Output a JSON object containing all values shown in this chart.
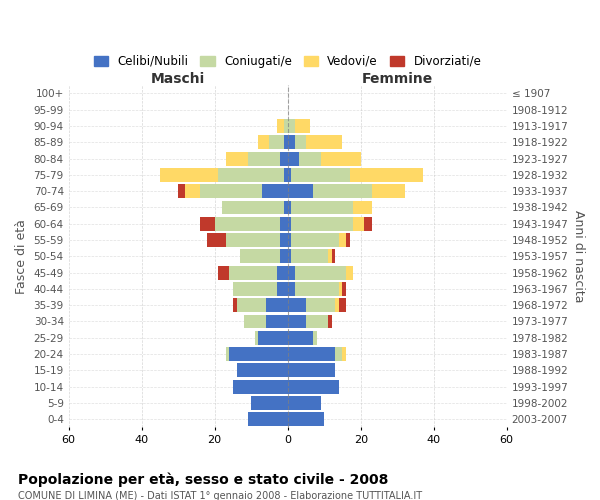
{
  "age_groups": [
    "0-4",
    "5-9",
    "10-14",
    "15-19",
    "20-24",
    "25-29",
    "30-34",
    "35-39",
    "40-44",
    "45-49",
    "50-54",
    "55-59",
    "60-64",
    "65-69",
    "70-74",
    "75-79",
    "80-84",
    "85-89",
    "90-94",
    "95-99",
    "100+"
  ],
  "birth_years": [
    "2003-2007",
    "1998-2002",
    "1993-1997",
    "1988-1992",
    "1983-1987",
    "1978-1982",
    "1973-1977",
    "1968-1972",
    "1963-1967",
    "1958-1962",
    "1953-1957",
    "1948-1952",
    "1943-1947",
    "1938-1942",
    "1933-1937",
    "1928-1932",
    "1923-1927",
    "1918-1922",
    "1913-1917",
    "1908-1912",
    "≤ 1907"
  ],
  "maschi": {
    "celibi": [
      11,
      10,
      15,
      14,
      16,
      8,
      6,
      6,
      3,
      3,
      2,
      2,
      2,
      1,
      7,
      1,
      2,
      1,
      0,
      0,
      0
    ],
    "coniugati": [
      0,
      0,
      0,
      0,
      1,
      1,
      6,
      8,
      12,
      13,
      11,
      15,
      18,
      17,
      17,
      18,
      9,
      4,
      1,
      0,
      0
    ],
    "vedovi": [
      0,
      0,
      0,
      0,
      0,
      0,
      0,
      0,
      0,
      0,
      0,
      0,
      0,
      0,
      4,
      16,
      6,
      3,
      2,
      0,
      0
    ],
    "divorziati": [
      0,
      0,
      0,
      0,
      0,
      0,
      0,
      1,
      0,
      3,
      0,
      5,
      4,
      0,
      2,
      0,
      0,
      0,
      0,
      0,
      0
    ]
  },
  "femmine": {
    "nubili": [
      10,
      9,
      14,
      13,
      13,
      7,
      5,
      5,
      2,
      2,
      1,
      1,
      1,
      1,
      7,
      1,
      3,
      2,
      0,
      0,
      0
    ],
    "coniugate": [
      0,
      0,
      0,
      0,
      2,
      1,
      6,
      8,
      12,
      14,
      10,
      13,
      17,
      17,
      16,
      16,
      6,
      3,
      2,
      0,
      0
    ],
    "vedove": [
      0,
      0,
      0,
      0,
      1,
      0,
      0,
      1,
      1,
      2,
      1,
      2,
      3,
      5,
      9,
      20,
      11,
      10,
      4,
      0,
      0
    ],
    "divorziate": [
      0,
      0,
      0,
      0,
      0,
      0,
      1,
      2,
      1,
      0,
      1,
      1,
      2,
      0,
      0,
      0,
      0,
      0,
      0,
      0,
      0
    ]
  },
  "colors": {
    "celibi": "#4472C4",
    "coniugati": "#C5D9A3",
    "vedovi": "#FFD966",
    "divorziati": "#C0392B"
  },
  "xlim": 60,
  "title": "Popolazione per età, sesso e stato civile - 2008",
  "subtitle": "COMUNE DI LIMINA (ME) - Dati ISTAT 1° gennaio 2008 - Elaborazione TUTTITALIA.IT",
  "ylabel_left": "Fasce di età",
  "ylabel_right": "Anni di nascita",
  "xlabel_left": "Maschi",
  "xlabel_right": "Femmine",
  "legend_labels": [
    "Celibi/Nubili",
    "Coniugati/e",
    "Vedovi/e",
    "Divorziati/e"
  ],
  "bg_color": "#FFFFFF",
  "grid_color": "#CCCCCC"
}
